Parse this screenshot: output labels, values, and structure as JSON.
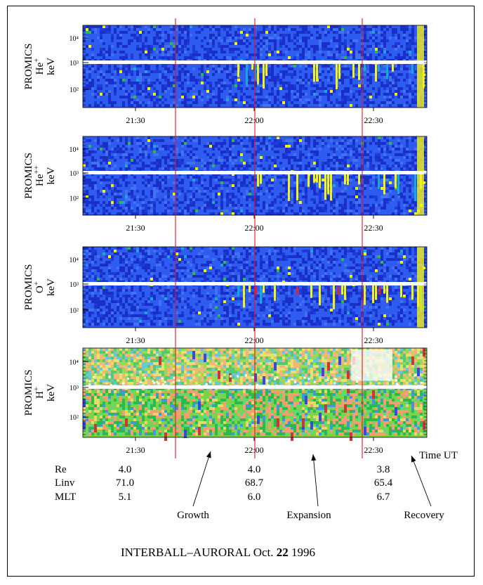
{
  "figure": {
    "title_main": "INTERBALL–AURORAL Oct. ",
    "title_day": "22",
    "title_year": " 1996",
    "time_axis_label": "Time UT"
  },
  "chart_data": [
    {
      "type": "heatmap",
      "instrument": "PROMICS",
      "species": "He",
      "charge": "+",
      "ylabel": "keV",
      "xticks": [
        "21:30",
        "22:00",
        "22:30"
      ],
      "yticks": [
        "10⁴",
        "10³",
        "10²"
      ],
      "palette": "blue"
    },
    {
      "type": "heatmap",
      "instrument": "PROMICS",
      "species": "He",
      "charge": "++",
      "ylabel": "keV",
      "xticks": [
        "21:30",
        "22:00",
        "22:30"
      ],
      "yticks": [
        "10⁴",
        "10³",
        "10²"
      ],
      "palette": "blue"
    },
    {
      "type": "heatmap",
      "instrument": "PROMICS",
      "species": "O",
      "charge": "+",
      "ylabel": "keV",
      "xticks": [
        "21:30",
        "22:00",
        "22:30"
      ],
      "yticks": [
        "10⁴",
        "10³",
        "10²"
      ],
      "palette": "blue"
    },
    {
      "type": "heatmap",
      "instrument": "PROMICS",
      "species": "H",
      "charge": "+",
      "ylabel": "keV",
      "xticks": [
        "21:30",
        "22:00",
        "22:30"
      ],
      "yticks": [
        "10⁴",
        "10³",
        "10²"
      ],
      "palette": "spectral"
    }
  ],
  "orbit_table": {
    "rows": [
      {
        "label": "Re",
        "values": [
          "4.0",
          "4.0",
          "3.8"
        ]
      },
      {
        "label": "Linv",
        "values": [
          "71.0",
          "68.7",
          "65.4"
        ]
      },
      {
        "label": "MLT",
        "values": [
          "5.1",
          "6.0",
          "6.7"
        ]
      }
    ]
  },
  "phases": [
    "Growth",
    "Expansion",
    "Recovery"
  ],
  "colors": {
    "marker_line": "#e8141e",
    "blue_bg": "#2e5cf0",
    "blue_dark": "#1a2fc8",
    "cyan": "#18a8d8",
    "green": "#2fb84e",
    "yellow": "#f5f219",
    "red": "#e2232c",
    "white_band": "#ffffff"
  }
}
